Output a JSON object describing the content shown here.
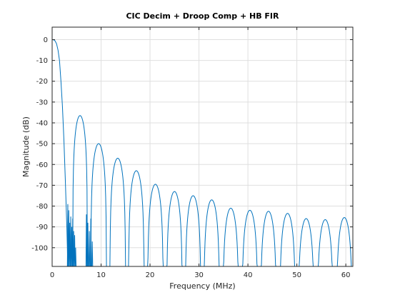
{
  "chart_data": {
    "type": "line",
    "title": "CIC Decim + Droop Comp + HB FIR",
    "xlabel": "Frequency (MHz)",
    "ylabel": "Magnitude (dB)",
    "xlim": [
      0,
      61.44
    ],
    "ylim": [
      -109,
      6
    ],
    "xticks": [
      0,
      10,
      20,
      30,
      40,
      50,
      60
    ],
    "yticks": [
      0,
      -10,
      -20,
      -30,
      -40,
      -50,
      -60,
      -70,
      -80,
      -90,
      -100
    ],
    "grid": true,
    "line_color": "#0072bd",
    "series": [
      {
        "passband": {
          "x": [
            0,
            0.3,
            0.6,
            0.9,
            1.2,
            1.5,
            1.8,
            2.1,
            2.4,
            2.7,
            3.0,
            3.2
          ],
          "y": [
            0,
            -0.1,
            -0.6,
            -2,
            -5,
            -10,
            -20,
            -32,
            -48,
            -68,
            -90,
            -109
          ]
        },
        "notch_region_1": {
          "x": [
            3.2,
            3.4,
            3.6,
            3.8,
            4.0,
            4.2,
            4.4,
            4.6,
            4.8
          ],
          "peaks_y": [
            -79,
            -82,
            -88,
            -85,
            -90,
            -86,
            -92,
            -94,
            -100
          ]
        },
        "notch_region_2": {
          "x": [
            7.0,
            7.3,
            7.6,
            7.9,
            8.2
          ],
          "peaks_y": [
            -84,
            -88,
            -92,
            -86,
            -97
          ]
        },
        "sidelobes": [
          {
            "center": 5.7,
            "peak": -36.5,
            "halfwidth": 1.5
          },
          {
            "center": 9.5,
            "peak": -50,
            "halfwidth": 1.6
          },
          {
            "center": 13.4,
            "peak": -57,
            "halfwidth": 1.6
          },
          {
            "center": 17.2,
            "peak": -63,
            "halfwidth": 1.6
          },
          {
            "center": 21.1,
            "peak": -69.5,
            "halfwidth": 1.6
          },
          {
            "center": 25.0,
            "peak": -73,
            "halfwidth": 1.6
          },
          {
            "center": 28.8,
            "peak": -75,
            "halfwidth": 1.6
          },
          {
            "center": 32.6,
            "peak": -77,
            "halfwidth": 1.6
          },
          {
            "center": 36.5,
            "peak": -81,
            "halfwidth": 1.6
          },
          {
            "center": 40.4,
            "peak": -82,
            "halfwidth": 1.6
          },
          {
            "center": 44.2,
            "peak": -82.5,
            "halfwidth": 1.6
          },
          {
            "center": 48.1,
            "peak": -83.5,
            "halfwidth": 1.6
          },
          {
            "center": 51.9,
            "peak": -86,
            "halfwidth": 1.6
          },
          {
            "center": 55.8,
            "peak": -86.5,
            "halfwidth": 1.6
          },
          {
            "center": 59.7,
            "peak": -85.5,
            "halfwidth": 1.6
          }
        ]
      }
    ]
  }
}
